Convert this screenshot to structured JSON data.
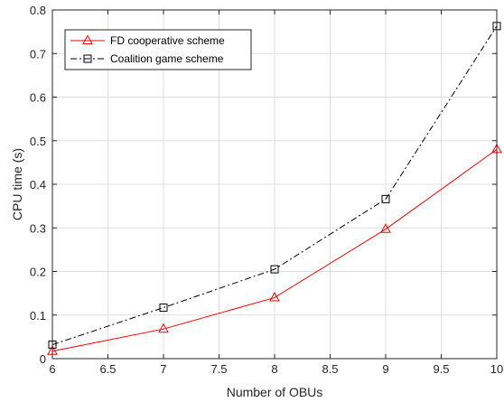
{
  "chart_data": {
    "type": "line",
    "title": "",
    "xlabel": "Number of OBUs",
    "ylabel": "CPU time (s)",
    "xlim": [
      6,
      10
    ],
    "ylim": [
      0,
      0.8
    ],
    "grid": true,
    "legend_position": "top-left",
    "x_ticks": [
      "6",
      "6.5",
      "7",
      "7.5",
      "8",
      "8.5",
      "9",
      "9.5",
      "10"
    ],
    "y_ticks": [
      "0",
      "0.1",
      "0.2",
      "0.3",
      "0.4",
      "0.5",
      "0.6",
      "0.7",
      "0.8"
    ],
    "series": [
      {
        "name": "FD cooperative scheme",
        "x": [
          6,
          7,
          8,
          9,
          10
        ],
        "y": [
          0.017,
          0.068,
          0.14,
          0.297,
          0.48
        ],
        "color": "#ff0000",
        "line_style": "solid",
        "marker": "triangle"
      },
      {
        "name": "Coalition game scheme",
        "x": [
          6,
          7,
          8,
          9,
          10
        ],
        "y": [
          0.032,
          0.117,
          0.205,
          0.366,
          0.763
        ],
        "color": "#000000",
        "line_style": "dash-dot",
        "marker": "square"
      }
    ]
  }
}
